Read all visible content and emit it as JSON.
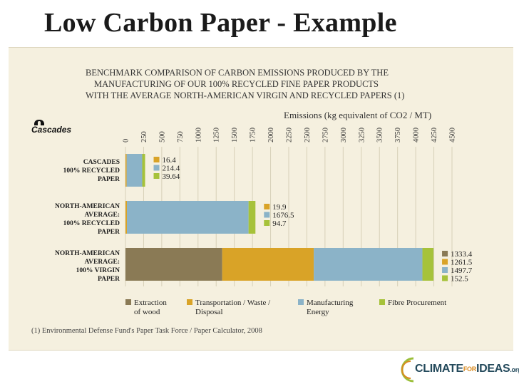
{
  "slide": {
    "title": "Low Carbon Paper - Example",
    "footnote": "(1) Environmental Defense Fund's Paper Task Force / Paper Calculator, 2008",
    "brand": "Cascades",
    "logo": {
      "part1": "CLIMATE",
      "part2": "FOR",
      "part3": "IDEAS",
      "part4": ".org"
    }
  },
  "colors": {
    "panel": "#f5f0df",
    "extraction": "#8a7a55",
    "transportation": "#d9a327",
    "manufacturing": "#8bb3c8",
    "fibre": "#a6c23a"
  },
  "chart_data": {
    "type": "bar",
    "orientation": "horizontal",
    "stacked": true,
    "title_lines": [
      "BENCHMARK COMPARISON OF CARBON EMISSIONS PRODUCED BY THE",
      "MANUFACTURING OF OUR 100% RECYCLED FINE PAPER PRODUCTS",
      "WITH THE AVERAGE NORTH-AMERICAN VIRGIN AND RECYCLED PAPERS (1)"
    ],
    "xlabel": "Emissions (kg equivalent of CO2 / MT)",
    "xlim": [
      0,
      4500
    ],
    "xticks": [
      "0",
      "250",
      "500",
      "750",
      "1000",
      "1250",
      "1500",
      "1750",
      "2000",
      "2250",
      "2500",
      "2750",
      "3000",
      "3250",
      "3500",
      "3750",
      "4000",
      "4250",
      "4500"
    ],
    "categories": [
      [
        "CASCADES",
        "100% RECYCLED",
        "PAPER"
      ],
      [
        "NORTH-AMERICAN",
        "AVERAGE:",
        "100% RECYCLED",
        "PAPER"
      ],
      [
        "NORTH-AMERICAN",
        "AVERAGE:",
        "100% VIRGIN",
        "PAPER"
      ]
    ],
    "series": [
      {
        "name": "Extraction of wood(1)",
        "legend_lines": [
          "Extraction",
          "of wood"
        ],
        "color": "#8a7a55",
        "values": [
          0,
          0,
          1333.4
        ],
        "labels": [
          "",
          "",
          "1333.4"
        ]
      },
      {
        "name": "Transportation / Waste / Disposal",
        "legend_lines": [
          "Transportation / Waste /",
          "Disposal"
        ],
        "color": "#d9a327",
        "values": [
          16.4,
          19.9,
          1261.5
        ],
        "labels": [
          "16.4",
          "19.9",
          "1261.5"
        ]
      },
      {
        "name": "Manufacturing Energy",
        "legend_lines": [
          "Manufacturing",
          "Energy"
        ],
        "color": "#8bb3c8",
        "values": [
          214.4,
          1676.5,
          1497.7
        ],
        "labels": [
          "214.4",
          "1676.5",
          "1497.7"
        ]
      },
      {
        "name": "Fibre Procurement",
        "legend_lines": [
          "Fibre Procurement"
        ],
        "color": "#a6c23a",
        "values": [
          39.64,
          94.7,
          152.5
        ],
        "labels": [
          "39.64",
          "94.7",
          "152.5"
        ]
      }
    ],
    "grid": true,
    "legend_position": "bottom"
  }
}
